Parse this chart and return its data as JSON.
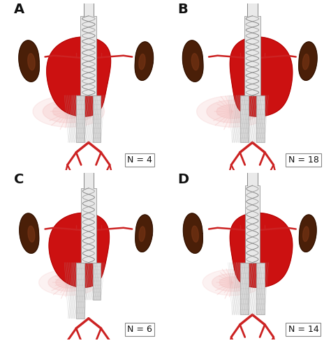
{
  "panels": [
    {
      "label": "A",
      "n_label": "N = 4",
      "row": 0,
      "col": 0
    },
    {
      "label": "B",
      "n_label": "N = 18",
      "row": 0,
      "col": 1
    },
    {
      "label": "C",
      "n_label": "N = 6",
      "row": 1,
      "col": 0
    },
    {
      "label": "D",
      "n_label": "N = 14",
      "row": 1,
      "col": 1
    }
  ],
  "bg_color": "#ffffff",
  "label_fontsize": 14,
  "n_fontsize": 9,
  "kidney_dark": "#4a1f08",
  "kidney_mid": "#6b2d0a",
  "red_aneurysm": "#cc1111",
  "red_bright": "#e03333",
  "pink_blush": "#f5aaaa",
  "stent_fill": "#e8e8e8",
  "stent_wire": "#888888",
  "vessel_red": "#cc2222",
  "vessel_outline": "#aa1111",
  "aorta_outline": "#999999",
  "text_color": "#111111"
}
